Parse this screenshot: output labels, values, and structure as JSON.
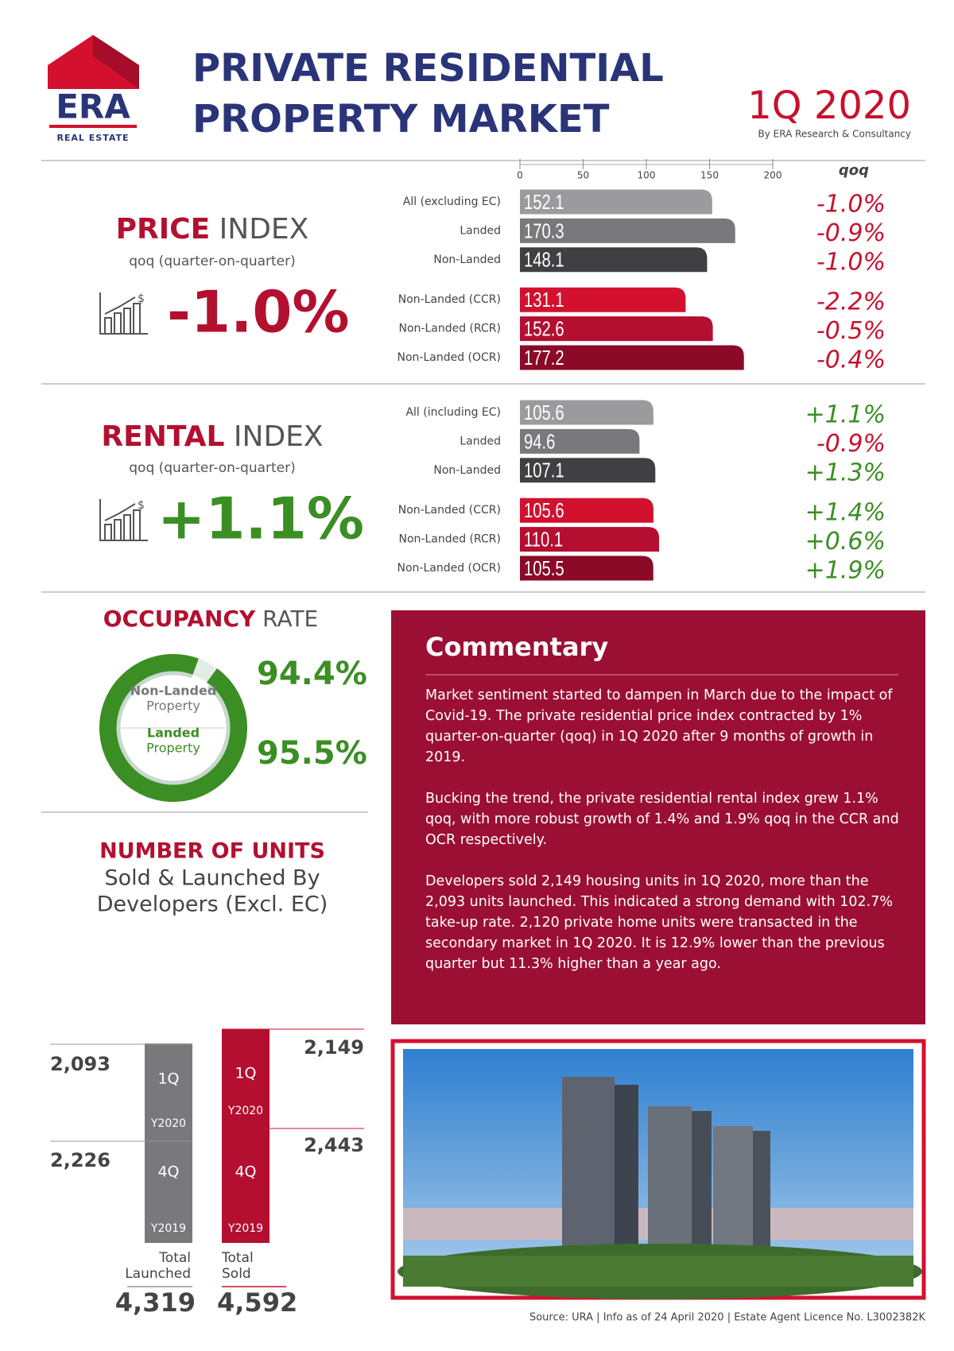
{
  "header": {
    "logo": "ERA",
    "logo_sub": "REAL ESTATE",
    "title_lines": [
      "PRIVATE RESIDENTIAL",
      "PROPERTY MARKET"
    ],
    "period": "1Q 2020",
    "byline": "By ERA Research & Consultancy"
  },
  "price_index": {
    "title_bold": "PRICE",
    "title_rest": "INDEX",
    "subtitle": "qoq (quarter-on-quarter)",
    "headline": "-1.0%"
  },
  "rental_index": {
    "title_bold": "RENTAL",
    "title_rest": "INDEX",
    "subtitle": "qoq (quarter-on-quarter)",
    "headline": "+1.1%"
  },
  "chart_data": [
    {
      "type": "bar",
      "orientation": "horizontal",
      "categories": [
        "All (excluding EC)",
        "Landed",
        "Non-Landed",
        "Non-Landed (CCR)",
        "Non-Landed (RCR)",
        "Non-Landed (OCR)"
      ],
      "values": [
        152.1,
        170.3,
        148.1,
        131.1,
        152.6,
        177.2
      ],
      "colors": [
        "#9b9b9d",
        "#79797b",
        "#404042",
        "#d3112f",
        "#b40e30",
        "#8a0a27"
      ],
      "xlim": [
        0,
        200
      ],
      "xticks": [
        0,
        50,
        100,
        150,
        200
      ],
      "change_header": "qoq",
      "change_labels": [
        "-1.0%",
        "-0.9%",
        "-1.0%",
        "-2.2%",
        "-0.5%",
        "-0.4%"
      ],
      "change_color": "#c8102e"
    },
    {
      "type": "bar",
      "orientation": "horizontal",
      "categories": [
        "All (including EC)",
        "Landed",
        "Non-Landed",
        "Non-Landed (CCR)",
        "Non-Landed (RCR)",
        "Non-Landed (OCR)"
      ],
      "values": [
        105.6,
        94.6,
        107.1,
        105.6,
        110.1,
        105.5
      ],
      "colors": [
        "#9b9b9d",
        "#79797b",
        "#404042",
        "#d3112f",
        "#b40e30",
        "#8a0a27"
      ],
      "xlim": [
        0,
        200
      ],
      "change_labels": [
        "+1.1%",
        "-0.9%",
        "+1.3%",
        "+1.4%",
        "+0.6%",
        "+1.9%"
      ],
      "change_colors": [
        "#3b8e23",
        "#c8102e",
        "#3b8e23",
        "#3b8e23",
        "#3b8e23",
        "#3b8e23"
      ]
    },
    {
      "type": "donut",
      "title_bold": "OCCUPANCY",
      "title_rest": "RATE",
      "categories": [
        "Non-Landed",
        "Landed"
      ],
      "label_note": "Property",
      "values": [
        94.4,
        95.5
      ],
      "value_labels": [
        "94.4%",
        "95.5%"
      ],
      "colors": [
        "#c9d8cf",
        "#3b8e23"
      ]
    }
  ],
  "units": {
    "title": "NUMBER OF UNITS",
    "subtitle_lines": [
      "Sold & Launched By",
      "Developers (Excl. EC)"
    ],
    "quarters": {
      "q1": "1Q",
      "y1": "Y2020",
      "q4": "4Q",
      "y4": "Y2019"
    },
    "launched": {
      "q1": "2,093",
      "q4": "2,226",
      "total": "4,319",
      "label": [
        "Total",
        "Launched"
      ]
    },
    "sold": {
      "q1": "2,149",
      "q4": "2,443",
      "total": "4,592",
      "label": [
        "Total",
        "Sold"
      ]
    }
  },
  "commentary": {
    "title": "Commentary",
    "paragraphs": [
      "Market sentiment started to dampen in March due to the impact of Covid-19. The private residential price index contracted by 1% quarter-on-quarter (qoq) in 1Q 2020 after 9 months of growth in 2019.",
      "Bucking the trend, the private residential rental index grew 1.1% qoq, with more robust growth of 1.4% and 1.9% qoq in the CCR and OCR respectively.",
      "Developers sold 2,149 housing units in 1Q 2020, more than the 2,093 units launched. This indicated a strong demand with 102.7% take-up rate. 2,120 private home units were transacted in the secondary market in 1Q 2020. It is 12.9% lower than the previous quarter but 11.3% higher than a year ago."
    ]
  },
  "footer": "Source: URA | Info as of 24 April 2020 | Estate Agent Licence No. L3002382K"
}
